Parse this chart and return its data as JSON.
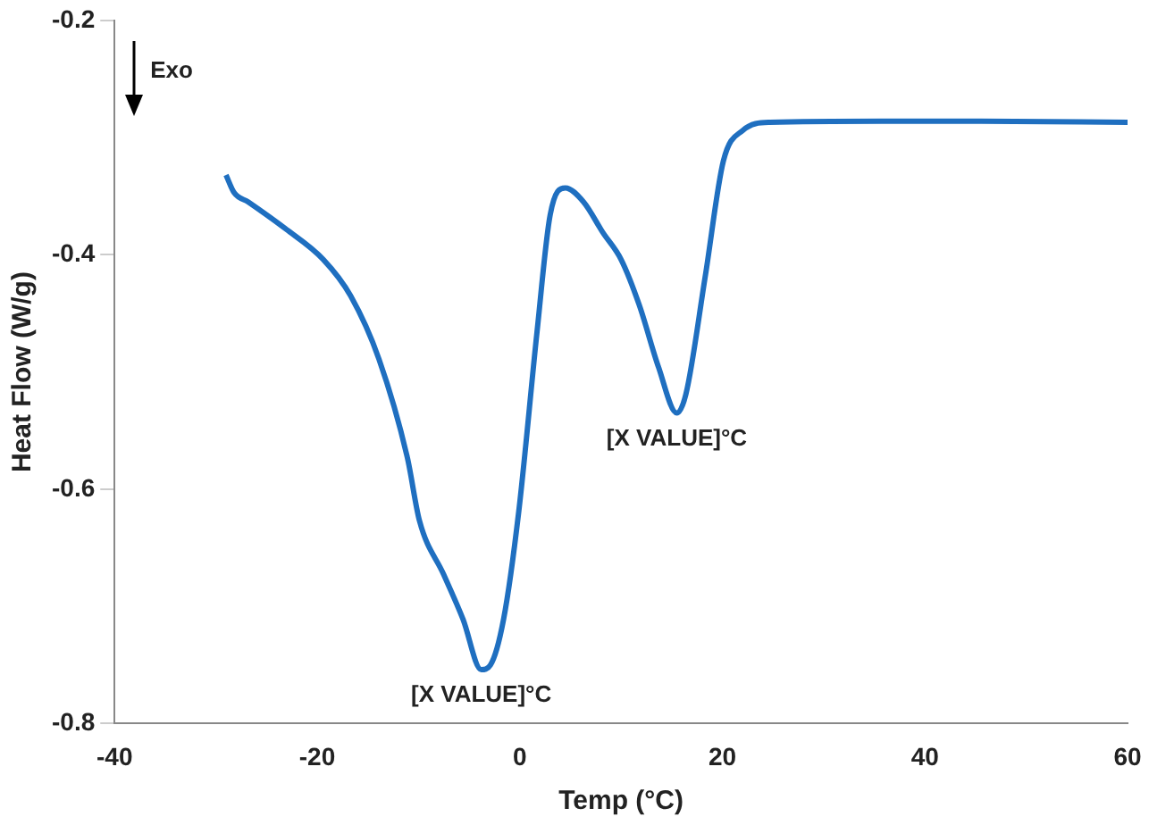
{
  "chart_data": {
    "type": "line",
    "xlabel": "Temp (°C)",
    "ylabel": "Heat Flow (W/g)",
    "x": [
      -29,
      -28.2,
      -26.8,
      -23.1,
      -19.4,
      -16.7,
      -13.9,
      -11.1,
      -9.9,
      -7.5,
      -5.6,
      -3.8,
      -2.9,
      -1.6,
      -0.1,
      1.7,
      3.0,
      4.5,
      6.3,
      8.2,
      10.0,
      11.8,
      13.7,
      15.5,
      16.4,
      18.3,
      20.1,
      22.0,
      24.7,
      35.7,
      45,
      60
    ],
    "series": [
      {
        "color": "#1f6fc0",
        "values": [
          -0.332,
          -0.347,
          -0.355,
          -0.378,
          -0.404,
          -0.435,
          -0.489,
          -0.573,
          -0.627,
          -0.673,
          -0.711,
          -0.754,
          -0.75,
          -0.711,
          -0.619,
          -0.466,
          -0.366,
          -0.343,
          -0.355,
          -0.381,
          -0.404,
          -0.443,
          -0.496,
          -0.535,
          -0.519,
          -0.419,
          -0.32,
          -0.294,
          -0.287,
          -0.286,
          -0.286,
          -0.287
        ]
      }
    ],
    "xlim": [
      -40,
      60
    ],
    "xticks": [
      -40,
      -20,
      0,
      20,
      40,
      60
    ],
    "ylim": [
      -0.8,
      -0.2
    ],
    "yticks": [
      -0.8,
      -0.6,
      -0.4,
      -0.2
    ],
    "grid": false,
    "legend": false,
    "marker": "none",
    "line_style": "solid",
    "annotations": [
      "Exo",
      {
        "text": "[X VALUE]°C",
        "x": -3.8,
        "y": -0.754
      },
      {
        "text": "[X VALUE]°C",
        "x": 15.5,
        "y": -0.535
      }
    ]
  }
}
